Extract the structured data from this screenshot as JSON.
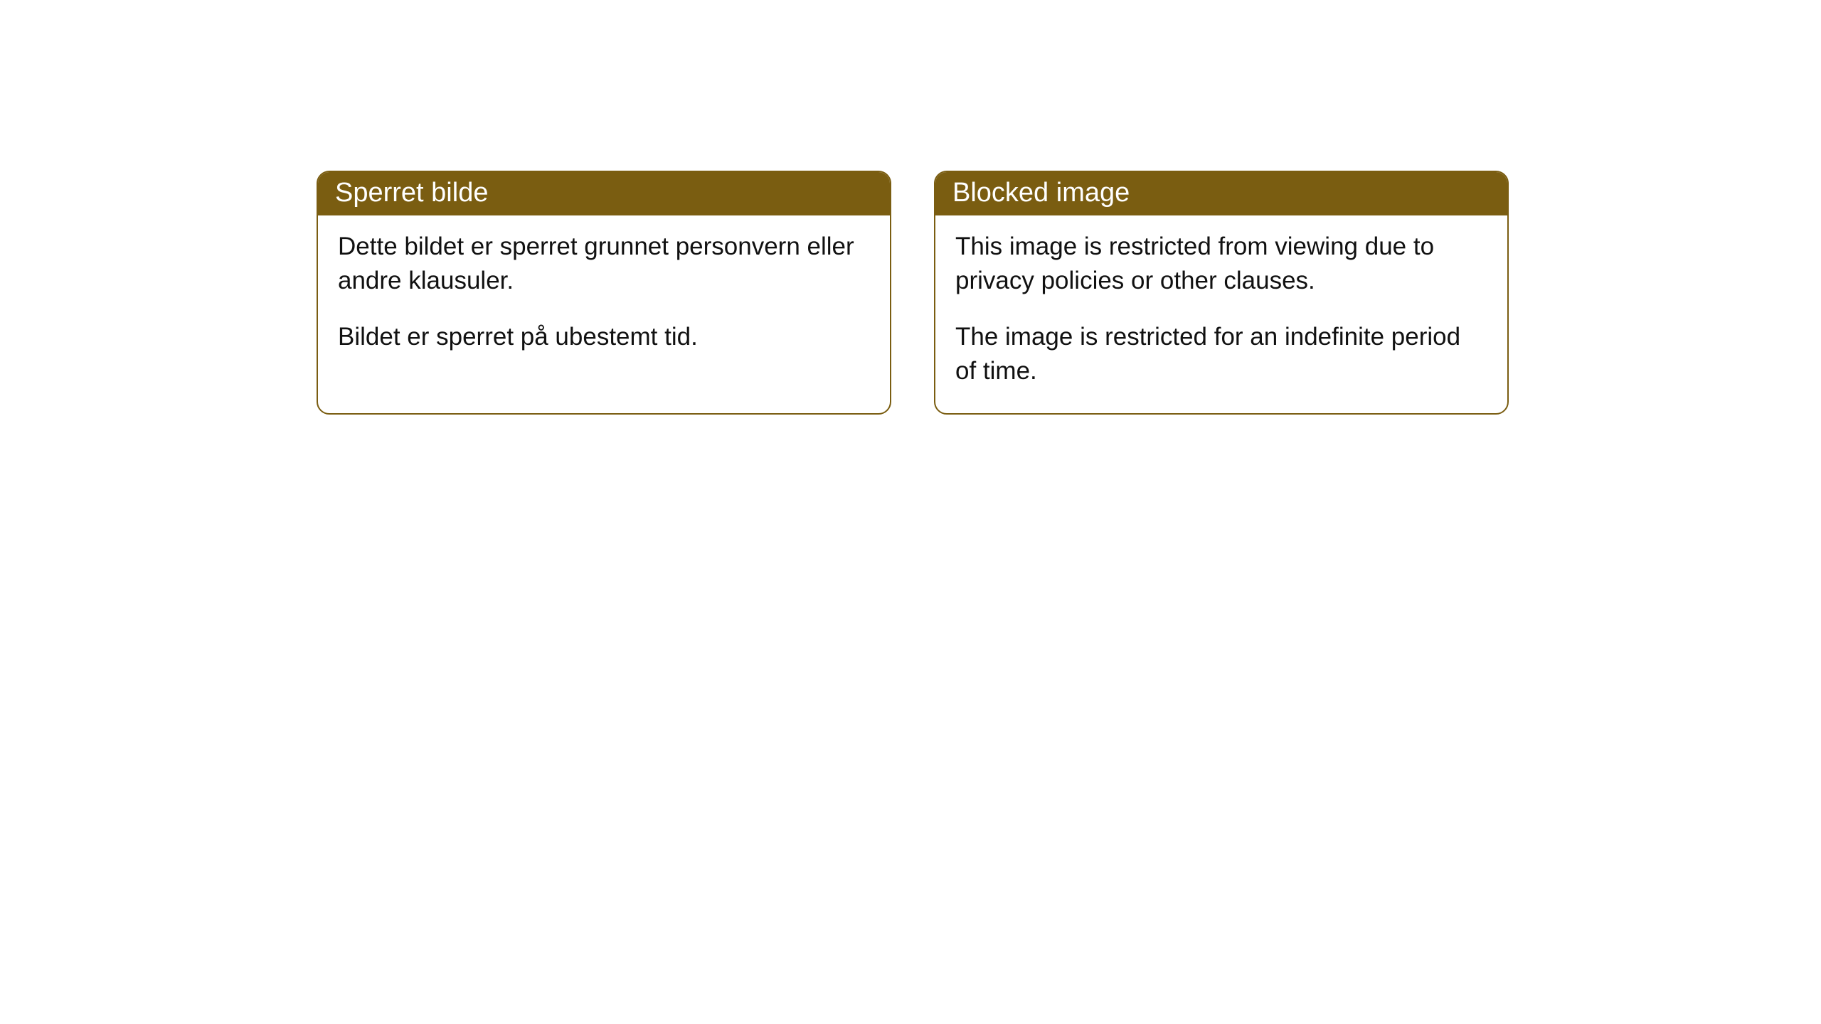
{
  "cards": [
    {
      "title": "Sperret bilde",
      "para1": "Dette bildet er sperret grunnet personvern eller andre klausuler.",
      "para2": "Bildet er sperret på ubestemt tid."
    },
    {
      "title": "Blocked image",
      "para1": "This image is restricted from viewing due to privacy policies or other clauses.",
      "para2": "The image is restricted for an indefinite period of time."
    }
  ],
  "style": {
    "header_bg": "#7a5d11",
    "header_text_color": "#ffffff",
    "border_color": "#7a5d11",
    "body_text_color": "#111111",
    "card_bg": "#ffffff",
    "border_radius": 18,
    "header_fontsize": 38,
    "body_fontsize": 35
  }
}
